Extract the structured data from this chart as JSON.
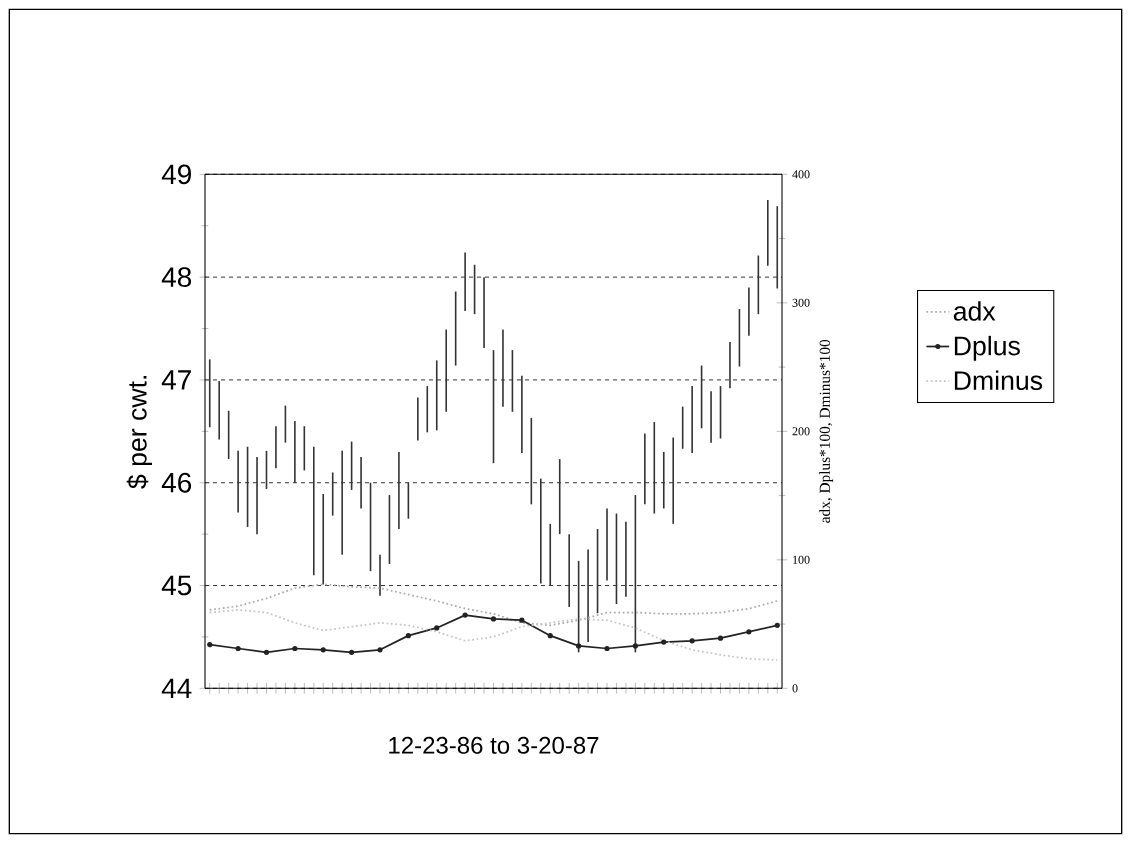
{
  "chart_data": {
    "type": "bar",
    "categories": [
      null,
      null,
      null,
      null,
      null,
      null,
      null,
      null,
      null,
      null,
      null,
      null,
      null,
      null,
      null,
      null,
      null,
      null,
      null,
      null,
      null,
      null,
      null,
      null,
      null,
      null,
      null,
      null,
      null,
      null,
      null,
      null,
      null,
      null,
      null,
      null,
      null,
      null,
      null,
      null,
      null,
      null,
      null,
      null,
      null,
      null,
      null,
      null,
      null,
      null,
      null,
      null,
      null,
      null,
      null,
      null,
      null,
      null,
      null,
      null,
      null
    ],
    "xlabel": "12-23-86 to 3-20-87",
    "ylabel": "$ per cwt.",
    "y2label": "adx, Dplus*100, Dminus*100",
    "ylim": [
      44,
      49
    ],
    "yticks": [
      44,
      {
        "value": 44.5,
        "label": null
      },
      45,
      {
        "value": 45.5,
        "label": null
      },
      46,
      {
        "value": 46.5,
        "label": null
      },
      47,
      {
        "value": 47.5,
        "label": null
      },
      48,
      {
        "value": 48.5,
        "label": null
      },
      49
    ],
    "y2lim": [
      0,
      400
    ],
    "y2ticks": [
      0,
      {
        "value": 50,
        "label": null
      },
      100,
      {
        "value": 150,
        "label": null
      },
      200,
      {
        "value": 250,
        "label": null
      },
      300,
      {
        "value": 350,
        "label": null
      },
      400
    ],
    "grid": "y",
    "legend": "right",
    "series": [
      {
        "color": "#333333",
        "base": [
          46.54,
          46.42,
          46.23,
          45.71,
          45.57,
          45.5,
          45.94,
          46.14,
          46.39,
          46.0,
          46.12,
          45.1,
          45.01,
          45.68,
          45.3,
          45.93,
          45.75,
          45.14,
          44.9,
          45.21,
          45.55,
          45.65,
          46.41,
          46.49,
          46.51,
          46.69,
          47.14,
          47.67,
          47.64,
          47.31,
          46.19,
          46.74,
          46.69,
          46.29,
          45.79,
          45.02,
          45.0,
          45.5,
          44.79,
          44.35,
          44.45,
          44.73,
          45.05,
          44.82,
          44.89,
          44.35,
          45.79,
          45.7,
          45.75,
          45.6,
          46.33,
          46.29,
          46.53,
          46.39,
          46.43,
          46.92,
          47.13,
          47.43,
          47.64,
          48.11,
          47.89
        ],
        "values": [
          0.66,
          0.57,
          0.47,
          0.6,
          0.78,
          0.75,
          0.37,
          0.41,
          0.36,
          0.6,
          0.43,
          1.25,
          0.88,
          0.42,
          1.01,
          0.47,
          0.5,
          0.86,
          0.4,
          0.67,
          0.75,
          0.35,
          0.42,
          0.45,
          0.68,
          0.8,
          0.72,
          0.57,
          0.48,
          0.69,
          1.1,
          0.75,
          0.6,
          0.75,
          0.84,
          1.02,
          0.6,
          0.73,
          0.71,
          0.89,
          0.9,
          0.82,
          0.7,
          0.88,
          0.73,
          1.53,
          0.69,
          0.89,
          0.55,
          0.84,
          0.41,
          0.65,
          0.61,
          0.5,
          0.51,
          0.45,
          0.56,
          0.47,
          0.57,
          0.64,
          0.8
        ]
      },
      {
        "type": "line",
        "name": "adx",
        "axis": "y2",
        "color": "#aaaaaa",
        "line_style": "dotted",
        "marker": "none",
        "values": [
          61,
          null,
          null,
          64,
          null,
          null,
          70,
          null,
          null,
          78,
          null,
          null,
          81,
          null,
          null,
          79,
          null,
          null,
          78,
          null,
          null,
          73,
          null,
          null,
          68,
          null,
          null,
          62,
          null,
          null,
          58,
          null,
          null,
          51,
          null,
          null,
          49,
          null,
          null,
          53,
          null,
          null,
          59,
          null,
          null,
          59,
          null,
          null,
          58,
          null,
          null,
          58,
          null,
          null,
          59,
          null,
          null,
          62,
          null,
          null,
          68
        ]
      },
      {
        "type": "line",
        "name": "Dplus",
        "axis": "y2",
        "color": "#222222",
        "line_style": "solid",
        "marker": "circle",
        "values": [
          34,
          null,
          null,
          31,
          null,
          null,
          28,
          null,
          null,
          31,
          null,
          null,
          30,
          null,
          null,
          28,
          null,
          null,
          30,
          null,
          null,
          41,
          null,
          null,
          47,
          null,
          null,
          57,
          null,
          null,
          54,
          null,
          null,
          53,
          null,
          null,
          41,
          null,
          null,
          33,
          null,
          null,
          31,
          null,
          null,
          33,
          null,
          null,
          36,
          null,
          null,
          37,
          null,
          null,
          39,
          null,
          null,
          44,
          null,
          null,
          49
        ]
      },
      {
        "type": "line",
        "name": "Dminus",
        "axis": "y2",
        "color": "#c4c4c4",
        "line_style": "dotted",
        "marker": "none",
        "values": [
          59,
          null,
          null,
          61,
          null,
          null,
          59,
          null,
          null,
          51,
          null,
          null,
          45,
          null,
          null,
          48,
          null,
          null,
          51,
          null,
          null,
          49,
          null,
          null,
          44,
          null,
          null,
          37,
          null,
          null,
          40,
          null,
          null,
          48,
          null,
          null,
          51,
          null,
          null,
          54,
          null,
          null,
          53,
          null,
          null,
          47,
          null,
          null,
          37,
          null,
          null,
          30,
          null,
          null,
          26,
          null,
          null,
          23,
          null,
          null,
          22
        ]
      }
    ]
  }
}
